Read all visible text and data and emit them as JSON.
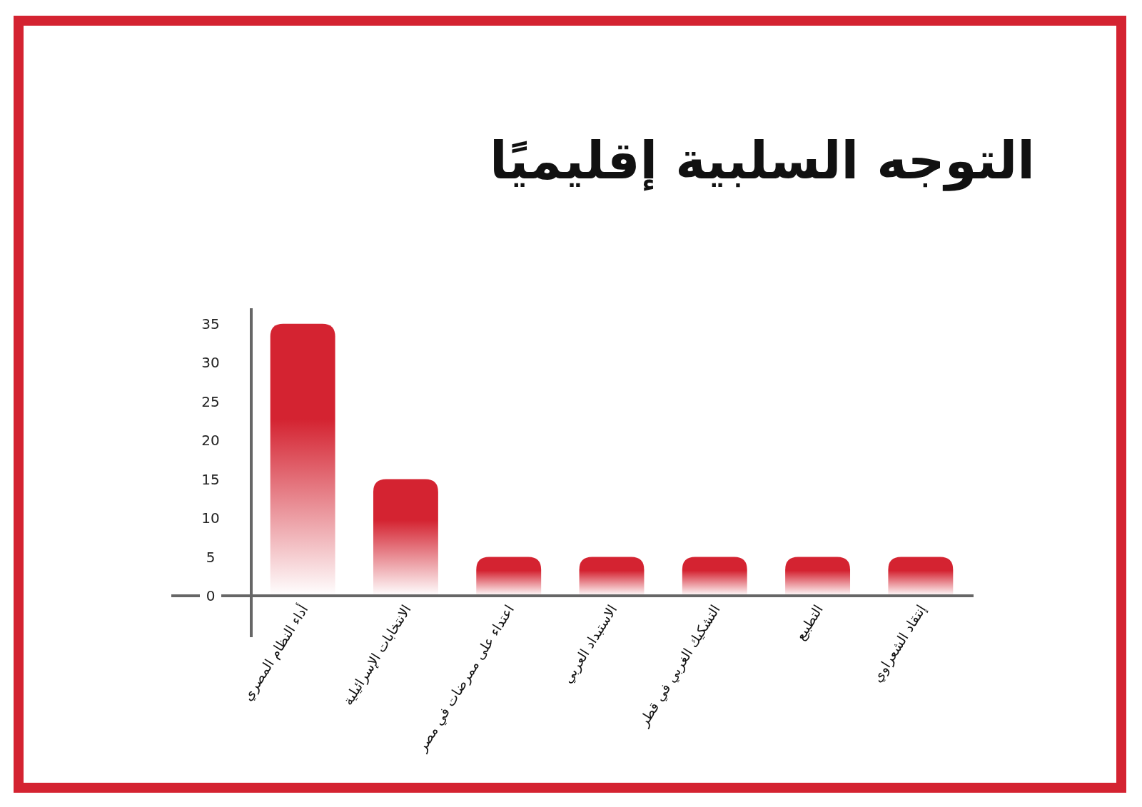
{
  "chart_data": {
    "type": "bar",
    "title": "التوجه السلبية إقليميًا",
    "categories": [
      "أداء النظام المصري",
      "الانتخابات الإسرائيلية",
      "اعتداء على ممرضات في مصر",
      "الاستبداد العربي",
      "التشكيك الغربي في قطر",
      "التطبيع",
      "إنتقاد الشعراوي"
    ],
    "values": [
      35,
      15,
      5,
      5,
      5,
      5,
      5
    ],
    "color": "#d42331",
    "ylim": [
      0,
      37
    ],
    "yticks": [
      0,
      5,
      10,
      15,
      20,
      25,
      30,
      35
    ],
    "grid": false
  }
}
